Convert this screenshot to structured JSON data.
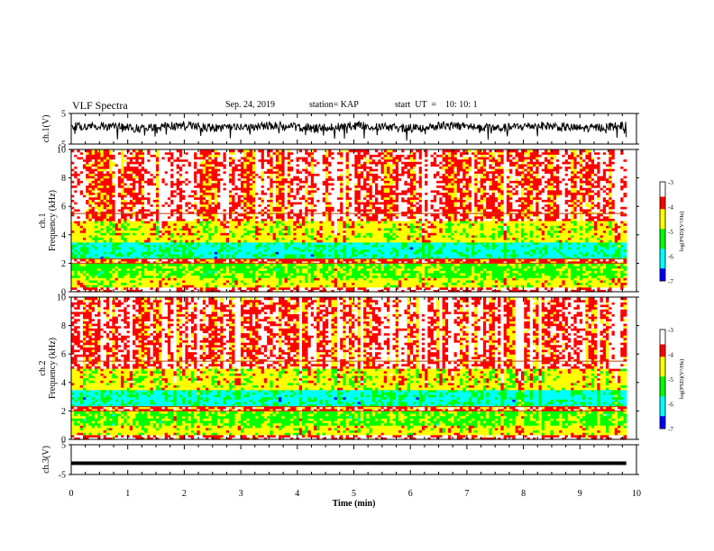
{
  "header": {
    "title": "VLF Spectra",
    "date": "Sep. 24, 2019",
    "station": "station= KAP",
    "start": "start  UT  =    10: 10: 1"
  },
  "chart_data": {
    "type": "heatmap",
    "xlabel": "Time (min)",
    "xlim": [
      0,
      10
    ],
    "x_ticks": [
      "0",
      "1",
      "2",
      "3",
      "4",
      "5",
      "6",
      "7",
      "8",
      "9",
      "10"
    ],
    "data_end_min": 9.82,
    "panels": [
      {
        "id": "ch1v",
        "kind": "line",
        "ylabel": "ch.1(V)",
        "ylim": [
          -5,
          5
        ],
        "y_ticks": [
          "5",
          "-5"
        ],
        "baseline": 0.6,
        "noise": 1.4
      },
      {
        "id": "ch1spec",
        "kind": "spectrogram",
        "ylabel": "ch.1",
        "ylabel2": "Frequency (kHz)",
        "ylim": [
          0,
          10
        ],
        "y_ticks": [
          "0",
          "2",
          "4",
          "6",
          "8",
          "10"
        ],
        "colorbar": {
          "label": "log(PSD)(V²/Hz)",
          "range": [
            -7,
            -3
          ],
          "ticks": [
            "-3",
            "-4",
            "-5",
            "-6",
            "-7"
          ]
        }
      },
      {
        "id": "ch2spec",
        "kind": "spectrogram",
        "ylabel": "ch.2",
        "ylabel2": "Frequency (kHz)",
        "ylim": [
          0,
          10
        ],
        "y_ticks": [
          "0",
          "2",
          "4",
          "6",
          "8",
          "10"
        ],
        "colorbar": {
          "label": "log(PSD)(V²/Hz)",
          "range": [
            -7,
            -3
          ],
          "ticks": [
            "-3",
            "-4",
            "-5",
            "-6",
            "-7"
          ]
        }
      },
      {
        "id": "ch3v",
        "kind": "line",
        "ylabel": "ch.3(V)",
        "ylim": [
          -5,
          5
        ],
        "y_ticks": [
          "5",
          "-5"
        ],
        "baseline": -1.2,
        "noise": 0.0
      }
    ],
    "spectrum_profile": [
      {
        "freq_khz": [
          0,
          0.3
        ],
        "level": -3.6
      },
      {
        "freq_khz": [
          0.3,
          1.0
        ],
        "level": -4.6
      },
      {
        "freq_khz": [
          1.0,
          2.0
        ],
        "level": -5.1
      },
      {
        "freq_khz": [
          2.0,
          2.3
        ],
        "level": -3.9
      },
      {
        "freq_khz": [
          2.3,
          3.5
        ],
        "level": -5.9
      },
      {
        "freq_khz": [
          3.5,
          5.0
        ],
        "level": -4.6
      },
      {
        "freq_khz": [
          5.0,
          10.0
        ],
        "level": -3.7
      }
    ]
  }
}
